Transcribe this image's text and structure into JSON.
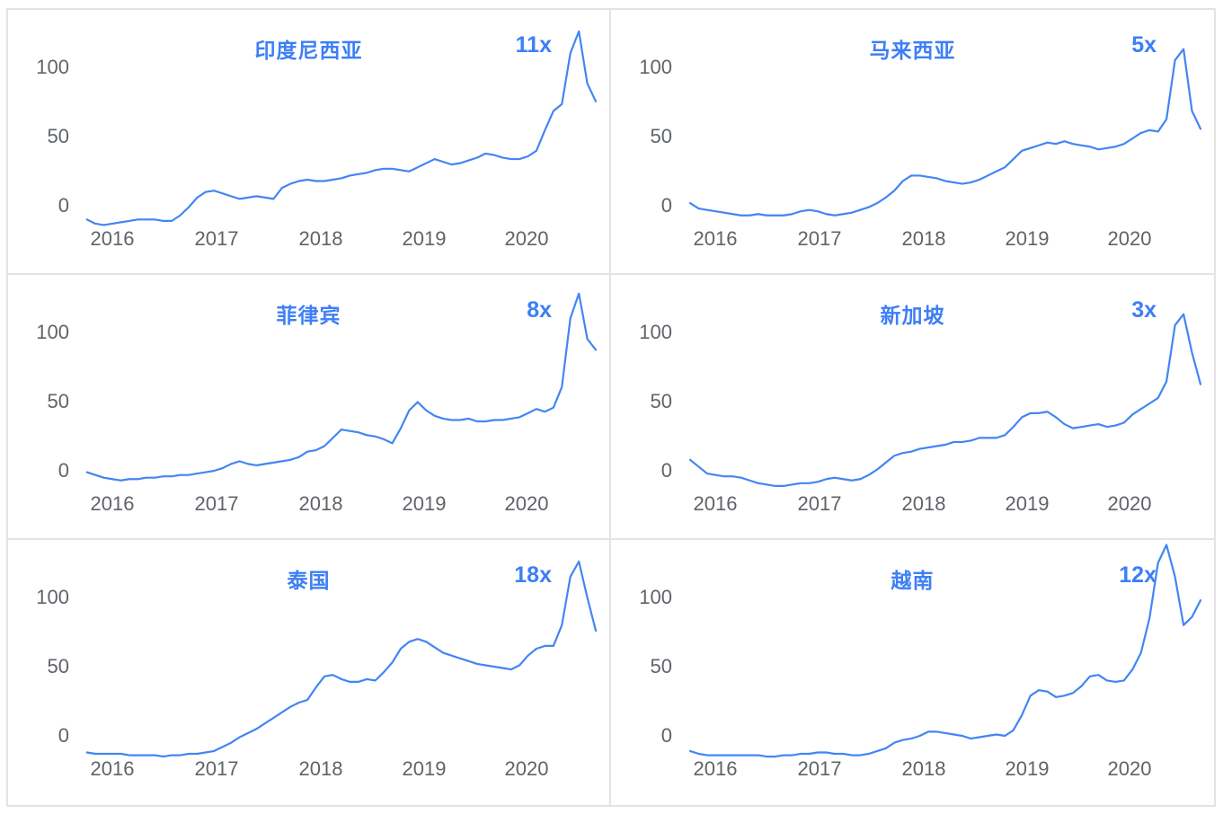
{
  "colors": {
    "line": "#4285f4",
    "title": "#3d7ff5",
    "axis_label": "#5f6368",
    "panel_border": "#e3e3e4",
    "background": "#ffffff"
  },
  "axes": {
    "y_ticks": [
      "100",
      "50",
      "0"
    ],
    "x_ticks": [
      "2016",
      "2017",
      "2018",
      "2019",
      "2020"
    ]
  },
  "chart_data": [
    {
      "type": "line",
      "title": "印度尼西亚",
      "multiplier": "11x",
      "x_range": "2015-10 to 2020-10, monthly",
      "x_ticks": [
        "2016",
        "2017",
        "2018",
        "2019",
        "2020"
      ],
      "y_ticks": [
        0,
        50,
        100
      ],
      "ylim": [
        -25,
        142
      ],
      "grid": false,
      "values": [
        -11,
        -14,
        -15,
        -14,
        -13,
        -12,
        -11,
        -11,
        -11,
        -12,
        -12,
        -8,
        -2,
        5,
        9,
        10,
        8,
        6,
        4,
        5,
        6,
        5,
        4,
        12,
        15,
        17,
        18,
        17,
        17,
        18,
        19,
        21,
        22,
        23,
        25,
        26,
        26,
        25,
        24,
        27,
        30,
        33,
        31,
        29,
        30,
        32,
        34,
        37,
        36,
        34,
        33,
        33,
        35,
        39,
        54,
        68,
        73,
        110,
        126,
        88,
        75
      ]
    },
    {
      "type": "line",
      "title": "马来西亚",
      "multiplier": "5x",
      "x_range": "2015-10 to 2020-10, monthly",
      "x_ticks": [
        "2016",
        "2017",
        "2018",
        "2019",
        "2020"
      ],
      "y_ticks": [
        0,
        50,
        100
      ],
      "ylim": [
        -25,
        142
      ],
      "grid": false,
      "values": [
        1,
        -3,
        -4,
        -5,
        -6,
        -7,
        -8,
        -8,
        -7,
        -8,
        -8,
        -8,
        -7,
        -5,
        -4,
        -5,
        -7,
        -8,
        -7,
        -6,
        -4,
        -2,
        1,
        5,
        10,
        17,
        21,
        21,
        20,
        19,
        17,
        16,
        15,
        16,
        18,
        21,
        24,
        27,
        33,
        39,
        41,
        43,
        45,
        44,
        46,
        44,
        43,
        42,
        40,
        41,
        42,
        44,
        48,
        52,
        54,
        53,
        62,
        105,
        113,
        68,
        55
      ]
    },
    {
      "type": "line",
      "title": "菲律宾",
      "multiplier": "8x",
      "x_range": "2015-10 to 2020-10, monthly",
      "x_ticks": [
        "2016",
        "2017",
        "2018",
        "2019",
        "2020"
      ],
      "y_ticks": [
        0,
        50,
        100
      ],
      "ylim": [
        -25,
        142
      ],
      "grid": false,
      "values": [
        -2,
        -4,
        -6,
        -7,
        -8,
        -7,
        -7,
        -6,
        -6,
        -5,
        -5,
        -4,
        -4,
        -3,
        -2,
        -1,
        1,
        4,
        6,
        4,
        3,
        4,
        5,
        6,
        7,
        9,
        13,
        14,
        17,
        23,
        29,
        28,
        27,
        25,
        24,
        22,
        19,
        30,
        43,
        49,
        43,
        39,
        37,
        36,
        36,
        37,
        35,
        35,
        36,
        36,
        37,
        38,
        41,
        44,
        42,
        45,
        60,
        110,
        128,
        95,
        87
      ]
    },
    {
      "type": "line",
      "title": "新加坡",
      "multiplier": "3x",
      "x_range": "2015-10 to 2020-10, monthly",
      "x_ticks": [
        "2016",
        "2017",
        "2018",
        "2019",
        "2020"
      ],
      "y_ticks": [
        0,
        50,
        100
      ],
      "ylim": [
        -25,
        142
      ],
      "grid": false,
      "values": [
        7,
        2,
        -3,
        -4,
        -5,
        -5,
        -6,
        -8,
        -10,
        -11,
        -12,
        -12,
        -11,
        -10,
        -10,
        -9,
        -7,
        -6,
        -7,
        -8,
        -7,
        -4,
        0,
        5,
        10,
        12,
        13,
        15,
        16,
        17,
        18,
        20,
        20,
        21,
        23,
        23,
        23,
        25,
        31,
        38,
        41,
        41,
        42,
        38,
        33,
        30,
        31,
        32,
        33,
        31,
        32,
        34,
        40,
        44,
        48,
        52,
        64,
        105,
        113,
        85,
        62
      ]
    },
    {
      "type": "line",
      "title": "泰国",
      "multiplier": "18x",
      "x_range": "2015-10 to 2020-10, monthly",
      "x_ticks": [
        "2016",
        "2017",
        "2018",
        "2019",
        "2020"
      ],
      "y_ticks": [
        0,
        50,
        100
      ],
      "ylim": [
        -25,
        142
      ],
      "grid": false,
      "values": [
        -12,
        -13,
        -13,
        -13,
        -13,
        -14,
        -14,
        -14,
        -14,
        -15,
        -14,
        -14,
        -13,
        -13,
        -12,
        -11,
        -8,
        -5,
        -1,
        2,
        5,
        9,
        13,
        17,
        21,
        24,
        26,
        35,
        43,
        44,
        41,
        39,
        39,
        41,
        40,
        46,
        53,
        63,
        68,
        70,
        68,
        64,
        60,
        58,
        56,
        54,
        52,
        51,
        50,
        49,
        48,
        51,
        58,
        63,
        65,
        65,
        80,
        115,
        126,
        100,
        76
      ]
    },
    {
      "type": "line",
      "title": "越南",
      "multiplier": "12x",
      "x_range": "2015-10 to 2020-10, monthly",
      "x_ticks": [
        "2016",
        "2017",
        "2018",
        "2019",
        "2020"
      ],
      "y_ticks": [
        0,
        50,
        100
      ],
      "ylim": [
        -25,
        142
      ],
      "grid": false,
      "values": [
        -11,
        -13,
        -14,
        -14,
        -14,
        -14,
        -14,
        -14,
        -14,
        -15,
        -15,
        -14,
        -14,
        -13,
        -13,
        -12,
        -12,
        -13,
        -13,
        -14,
        -14,
        -13,
        -11,
        -9,
        -5,
        -3,
        -2,
        0,
        3,
        3,
        2,
        1,
        0,
        -2,
        -1,
        0,
        1,
        0,
        4,
        15,
        29,
        33,
        32,
        28,
        29,
        31,
        36,
        43,
        44,
        40,
        39,
        40,
        48,
        60,
        85,
        125,
        138,
        115,
        80,
        86,
        98
      ]
    }
  ]
}
